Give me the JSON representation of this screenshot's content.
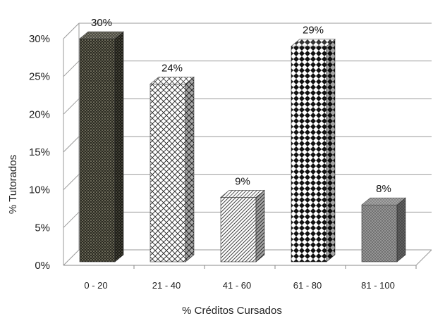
{
  "chart_data": {
    "type": "bar",
    "categories": [
      "0 - 20",
      "21 - 40",
      "41 - 60",
      "61 - 80",
      "81 - 100"
    ],
    "values": [
      30,
      24,
      9,
      29,
      8
    ],
    "data_labels": [
      "30%",
      "24%",
      "9%",
      "29%",
      "8%"
    ],
    "title": "",
    "xlabel": "% Créditos Cursados",
    "ylabel": "%  Tutorados",
    "ylim": [
      0,
      30
    ],
    "yticks": [
      "0%",
      "5%",
      "10%",
      "15%",
      "20%",
      "25%",
      "30%"
    ],
    "grid": true,
    "style": "3d-columns",
    "patterns": [
      "dense-dots-dark",
      "diagonal-lattice",
      "diagonal-hatch",
      "diamond-checker",
      "fine-weave-gray"
    ]
  }
}
